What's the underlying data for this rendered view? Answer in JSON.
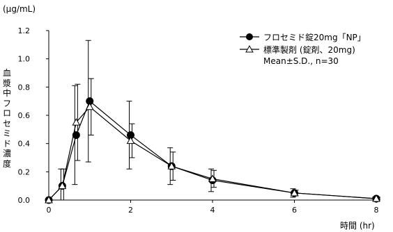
{
  "chart_data": {
    "type": "line",
    "unit_label": "(µg/mL)",
    "xlabel": "時間 (hr)",
    "ylabel": "血漿中フロセミド濃度",
    "xlim": [
      0,
      8
    ],
    "ylim": [
      0,
      1.2
    ],
    "x_ticks": [
      "0",
      "2",
      "4",
      "6",
      "8"
    ],
    "y_ticks": [
      "0.0",
      "0.2",
      "0.4",
      "0.6",
      "0.8",
      "1.0",
      "1.2"
    ],
    "grid": false,
    "legend_position": "top-right",
    "note": "Mean±S.D., n=30",
    "x": [
      0,
      0.33,
      0.67,
      1,
      2,
      3,
      4,
      6,
      8
    ],
    "series": [
      {
        "name": "フロセミド錠20mg「NP」",
        "marker": "filled-circle",
        "values": [
          0,
          0.1,
          0.46,
          0.7,
          0.46,
          0.24,
          0.14,
          0.05,
          0.01
        ],
        "sd": [
          0,
          0.12,
          0.35,
          0.43,
          0.24,
          0.13,
          0.08,
          0.03,
          0.01
        ]
      },
      {
        "name": "標準製剤 (錠剤、20mg)",
        "marker": "open-triangle",
        "values": [
          0,
          0.1,
          0.55,
          0.66,
          0.42,
          0.24,
          0.15,
          0.05,
          0.01
        ],
        "sd": [
          0,
          0.12,
          0.27,
          0.2,
          0.12,
          0.1,
          0.06,
          0.02,
          0.01
        ]
      }
    ]
  }
}
